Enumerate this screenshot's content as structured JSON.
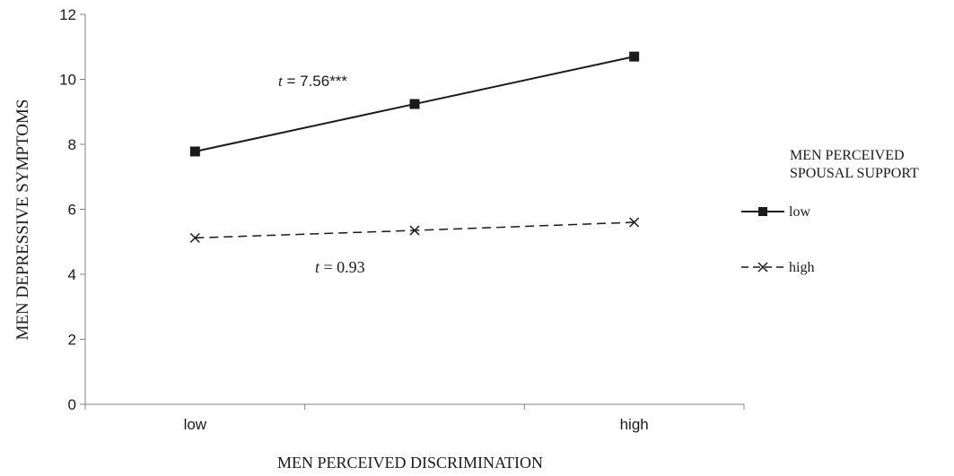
{
  "chart_data": {
    "type": "line",
    "categories": [
      "low",
      "",
      "high"
    ],
    "xlabel": "MEN PERCEIVED DISCRIMINATION",
    "ylabel": "MEN DEPRESSIVE SYMPTOMS",
    "ylim": [
      0,
      12
    ],
    "yticks": [
      "0",
      "2",
      "4",
      "6",
      "8",
      "10",
      "12"
    ],
    "grid": false,
    "legend_title_lines": [
      "MEN PERCEIVED",
      "SPOUSAL SUPPORT"
    ],
    "legend_position": "right",
    "series": [
      {
        "name": "low",
        "values": [
          7.78,
          9.24,
          10.7
        ],
        "line_style": "solid",
        "marker": "square",
        "annotation": {
          "italic": "t",
          "rest": " = 7.56***"
        }
      },
      {
        "name": "high",
        "values": [
          5.12,
          5.35,
          5.6
        ],
        "line_style": "dashed",
        "marker": "x",
        "annotation": {
          "italic": "t",
          "rest": " = 0.93"
        }
      }
    ],
    "colors": {
      "lines": "#1a1a1a",
      "axis": "#808080"
    }
  }
}
